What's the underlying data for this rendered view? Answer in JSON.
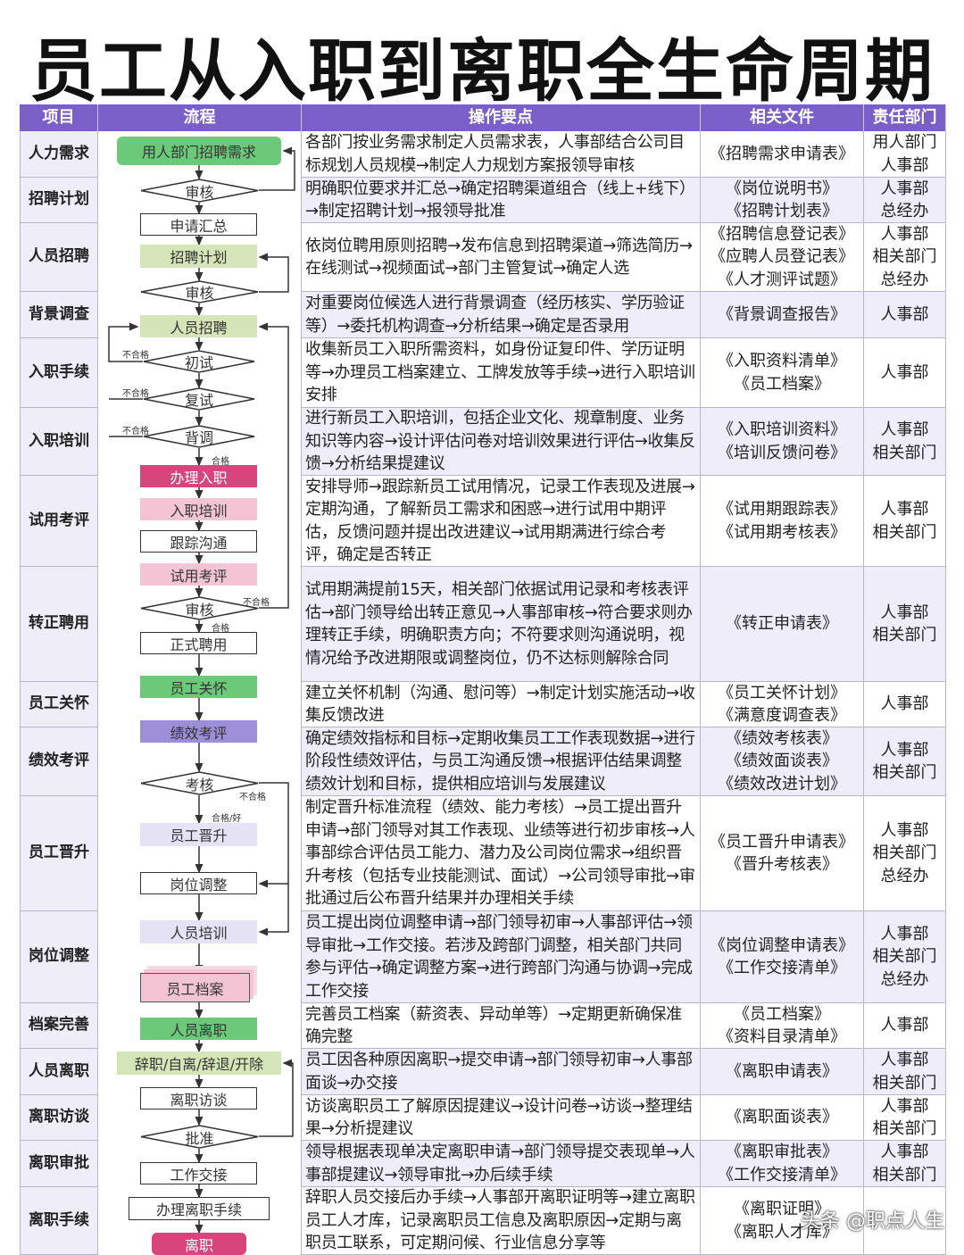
{
  "title": "员工从入职到离职全生命周期",
  "headers": [
    "项目",
    "流程",
    "操作要点",
    "相关文件",
    "责任部门"
  ],
  "colors": {
    "header": "#7b5fc8",
    "green": "#6cc97a",
    "light_green": "#d4e6b8",
    "magenta": "#d8457c",
    "pink": "#f2c4d4",
    "purple": "#9c8fd8",
    "lavender": "#e4e2f4"
  },
  "rows": [
    {
      "item": "人力需求",
      "text": "各部门按业务需求制定人员需求表，人事部结合公司目标规划人员规模→制定人力规划方案报领导审核",
      "files": "《招聘需求申请表》",
      "dept": "用人部门\n人事部"
    },
    {
      "item": "招聘计划",
      "text": "明确职位要求并汇总→确定招聘渠道组合（线上+线下）→制定招聘计划→报领导批准",
      "files": "《岗位说明书》\n《招聘计划表》",
      "dept": "人事部\n总经办"
    },
    {
      "item": "人员招聘",
      "text": "依岗位聘用原则招聘→发布信息到招聘渠道→筛选简历→在线测试→视频面试→部门主管复试→确定人选",
      "files": "《招聘信息登记表》\n《应聘人员登记表》\n《人才测评试题》",
      "dept": "人事部\n相关部门\n总经办"
    },
    {
      "item": "背景调查",
      "text": "对重要岗位候选人进行背景调查（经历核实、学历验证等）→委托机构调查→分析结果→确定是否录用",
      "files": "《背景调查报告》",
      "dept": "人事部"
    },
    {
      "item": "入职手续",
      "text": "收集新员工入职所需资料，如身份证复印件、学历证明等→办理员工档案建立、工牌发放等手续→进行入职培训安排",
      "files": "《入职资料清单》\n《员工档案》",
      "dept": "人事部"
    },
    {
      "item": "入职培训",
      "text": "进行新员工入职培训，包括企业文化、规章制度、业务知识等内容→设计评估问卷对培训效果进行评估→收集反馈→分析结果提建议",
      "files": "《入职培训资料》\n《培训反馈问卷》",
      "dept": "人事部\n相关部门"
    },
    {
      "item": "试用考评",
      "text": "安排导师→跟踪新员工试用情况，记录工作表现及进展→定期沟通，了解新员工需求和困惑→进行试用中期评估，反馈问题并提出改进建议→试用期满进行综合考评，确定是否转正",
      "files": "《试用期跟踪表》\n《试用期考核表》",
      "dept": "人事部\n相关部门"
    },
    {
      "item": "转正聘用",
      "text": "试用期满提前15天，相关部门依据试用记录和考核表评估→部门领导给出转正意见→人事部审核→符合要求则办理转正手续，明确职责方向；不符要求则沟通说明，视情况给予改进期限或调整岗位，仍不达标则解除合同",
      "files": "《转正申请表》",
      "dept": "人事部\n相关部门"
    },
    {
      "item": "员工关怀",
      "text": "建立关怀机制（沟通、慰问等）→制定计划实施活动→收集反馈改进",
      "files": "《员工关怀计划》\n《满意度调查表》",
      "dept": "人事部"
    },
    {
      "item": "绩效考评",
      "text": "确定绩效指标和目标→定期收集员工工作表现数据→进行阶段性绩效评估，与员工沟通反馈→根据评估结果调整绩效计划和目标，提供相应培训与发展建议",
      "files": "《绩效考核表》\n《绩效面谈表》\n《绩效改进计划》",
      "dept": "人事部\n相关部门"
    },
    {
      "item": "员工晋升",
      "text": "制定晋升标准流程（绩效、能力考核）→员工提出晋升申请→部门领导对其工作表现、业绩等进行初步审核→人事部综合评估员工能力、潜力及公司岗位需求→组织晋升考核（包括专业技能测试、面试）→公司领导审批→审批通过后公布晋升结果并办理相关手续",
      "files": "《员工晋升申请表》\n《晋升考核表》",
      "dept": "人事部\n相关部门\n总经办"
    },
    {
      "item": "岗位调整",
      "text": "员工提出岗位调整申请→部门领导初审→人事部评估→领导审批→工作交接。若涉及跨部门调整，相关部门共同参与评估→确定调整方案→进行跨部门沟通与协调→完成工作交接",
      "files": "《岗位调整申请表》\n《工作交接清单》",
      "dept": "人事部\n相关部门\n总经办"
    },
    {
      "item": "档案完善",
      "text": "完善员工档案（薪资表、异动单等）→定期更新确保准确完整",
      "files": "《员工档案》\n《资料目录清单》",
      "dept": "人事部"
    },
    {
      "item": "人员离职",
      "text": "员工因各种原因离职→提交申请→部门领导初审→人事部面谈→办交接",
      "files": "《离职申请表》",
      "dept": "人事部\n相关部门"
    },
    {
      "item": "离职访谈",
      "text": "访谈离职员工了解原因提建议→设计问卷→访谈→整理结果→分析提建议",
      "files": "《离职面谈表》",
      "dept": "人事部\n相关部门"
    },
    {
      "item": "离职审批",
      "text": "领导根据表现单决定离职申请→部门领导提交表现单→人事部提建议→领导审批→办后续手续",
      "files": "《离职审批表》\n《工作交接清单》",
      "dept": "人事部\n相关部门"
    },
    {
      "item": "离职手续",
      "text": "辞职人员交接后办手续→人事部开离职证明等→建立离职员工人才库，记录离职员工信息及离职原因→定期与离职员工联系，可定期问候、行业信息分享等",
      "files": "《离职证明》\n《离职人才库》",
      "dept": ""
    }
  ],
  "flow": {
    "nodes": [
      "用人部门招聘需求",
      "审核",
      "申请汇总",
      "招聘计划",
      "审核",
      "人员招聘",
      "初试",
      "复试",
      "背调",
      "办理入职",
      "入职培训",
      "跟踪沟通",
      "试用考评",
      "审核",
      "正式聘用",
      "员工关怀",
      "绩效考评",
      "考核",
      "员工晋升",
      "岗位调整",
      "人员培训",
      "员工档案",
      "人员离职",
      "辞职/自离/辞退/开除",
      "离职访谈",
      "批准",
      "工作交接",
      "办理离职手续",
      "离职"
    ],
    "labels": [
      "不合格",
      "不合格",
      "不合格",
      "合格",
      "不合格",
      "合格",
      "不合格",
      "合格/好"
    ]
  },
  "watermark": "头条 @职点人生"
}
